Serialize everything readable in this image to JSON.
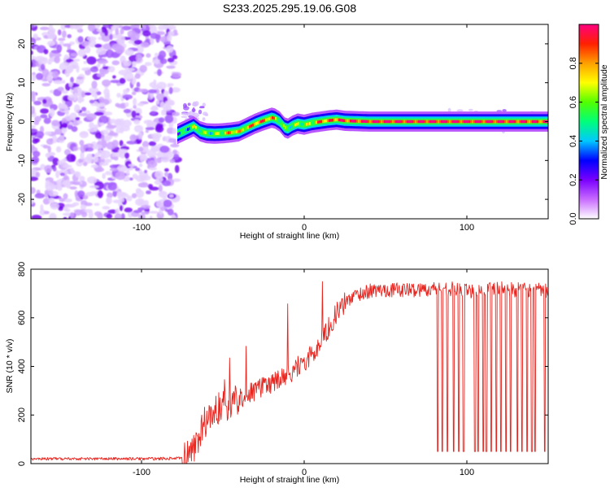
{
  "figure_title": "S233.2025.295.19.06.G08",
  "chart_data": [
    {
      "type": "heatmap",
      "title": "S233.2025.295.19.06.G08",
      "xlabel": "Height of straight line (km)",
      "ylabel": "Frequency (Hz)",
      "xlim": [
        -168,
        150
      ],
      "ylim": [
        -25,
        25
      ],
      "xticks": [
        -100,
        0,
        100
      ],
      "yticks": [
        -20,
        -10,
        0,
        10,
        20
      ],
      "xtick_labels": [
        "-100",
        "0",
        "100"
      ],
      "ytick_labels": [
        "-20",
        "-10",
        "0",
        "10",
        "20"
      ],
      "colorbar": {
        "label": "Normalized spectral amplitude",
        "range": [
          0.0,
          1.0
        ],
        "ticks": [
          0.0,
          0.2,
          0.4,
          0.6,
          0.8
        ],
        "tick_labels": [
          "0.0",
          "0.2",
          "0.4",
          "0.6",
          "0.8"
        ],
        "colors": [
          "#ffffff",
          "#c86bff",
          "#7a00ff",
          "#0000ff",
          "#00c8ff",
          "#00ff7a",
          "#52ff00",
          "#ffff00",
          "#ffa000",
          "#ff2000",
          "#ff0080"
        ]
      },
      "noise_region_x": [
        -168,
        -78
      ],
      "ridge": {
        "x": [
          -78,
          -72,
          -68,
          -64,
          -60,
          -55,
          -50,
          -45,
          -40,
          -35,
          -30,
          -25,
          -20,
          -18,
          -15,
          -12,
          -10,
          -7,
          -4,
          0,
          5,
          10,
          15,
          20,
          25,
          40,
          60,
          80,
          100,
          120,
          150
        ],
        "freq": [
          -3.2,
          -2.0,
          -1.2,
          -2.5,
          -3.0,
          -3.1,
          -3.0,
          -2.8,
          -2.5,
          -1.5,
          -0.5,
          0.3,
          1.0,
          0.8,
          0.0,
          -1.5,
          -1.8,
          -1.0,
          -0.5,
          -0.8,
          -0.3,
          0.0,
          0.3,
          0.5,
          0.2,
          0.0,
          0.0,
          0.0,
          0.0,
          0.0,
          0.0
        ],
        "amplitude": [
          0.35,
          0.45,
          0.6,
          0.6,
          0.5,
          0.55,
          0.65,
          0.8,
          0.7,
          0.75,
          0.85,
          0.8,
          0.8,
          0.65,
          0.6,
          0.5,
          0.55,
          0.55,
          0.6,
          0.6,
          0.65,
          0.85,
          0.8,
          0.9,
          0.9,
          0.95,
          0.95,
          0.95,
          0.95,
          0.95,
          0.9
        ]
      }
    },
    {
      "type": "line",
      "xlabel": "Height of straight line (km)",
      "ylabel": "SNR (10 * v/v)",
      "xlim": [
        -168,
        150
      ],
      "ylim": [
        0,
        800
      ],
      "xticks": [
        -100,
        0,
        100
      ],
      "yticks": [
        0,
        200,
        400,
        600,
        800
      ],
      "xtick_labels": [
        "-100",
        "0",
        "100"
      ],
      "ytick_labels": [
        "0",
        "200",
        "400",
        "600",
        "800"
      ],
      "series": [
        {
          "name": "SNR",
          "color": "#e8251f",
          "x": [
            -168,
            -140,
            -110,
            -90,
            -75,
            -70,
            -66,
            -62,
            -58,
            -54,
            -50,
            -45,
            -40,
            -30,
            -20,
            -10,
            -5,
            0,
            5,
            10,
            15,
            20,
            25,
            30,
            40,
            50,
            60,
            70,
            80,
            90,
            100,
            110,
            120,
            130,
            140,
            150
          ],
          "values": [
            20,
            20,
            20,
            20,
            22,
            40,
            90,
            160,
            200,
            220,
            240,
            250,
            270,
            300,
            330,
            360,
            400,
            410,
            450,
            500,
            560,
            620,
            660,
            690,
            710,
            715,
            715,
            715,
            720,
            720,
            710,
            715,
            720,
            715,
            715,
            710
          ],
          "dropouts": {
            "x": [
              82,
              85,
              88,
              92,
              95,
              98,
              105,
              107,
              110,
              112,
              115,
              118,
              121,
              124,
              127,
              131,
              134,
              137,
              140,
              142,
              148
            ],
            "low_value": 50
          }
        }
      ]
    }
  ]
}
